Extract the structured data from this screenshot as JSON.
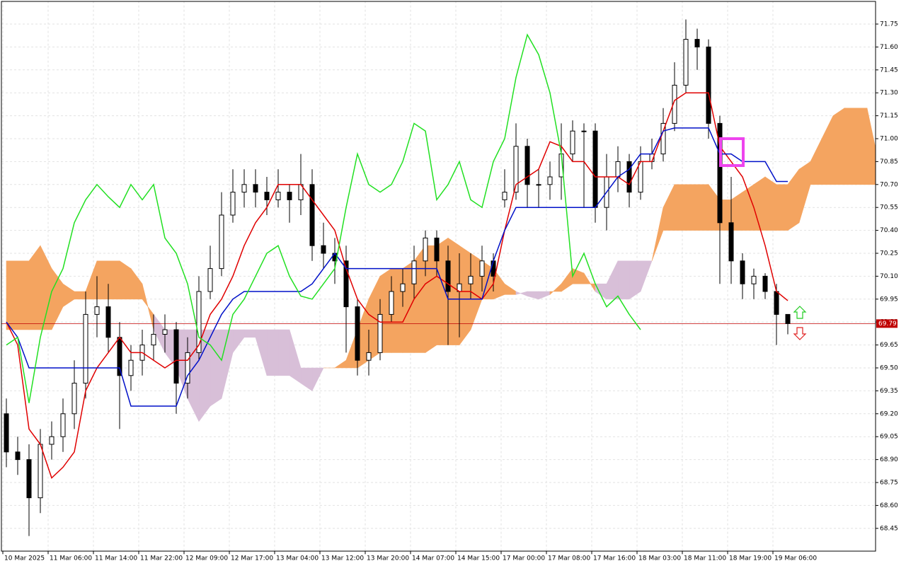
{
  "chart_data": {
    "type": "candlestick",
    "categories": [
      "10 Mar 2025",
      null,
      null,
      null,
      "11 Mar 06:00",
      null,
      null,
      null,
      "11 Mar 14:00",
      null,
      null,
      null,
      "11 Mar 22:00",
      null,
      null,
      null,
      "12 Mar 09:00",
      null,
      null,
      null,
      "12 Mar 17:00",
      null,
      null,
      null,
      "13 Mar 04:00",
      null,
      null,
      null,
      "13 Mar 12:00",
      null,
      null,
      null,
      "13 Mar 20:00",
      null,
      null,
      null,
      "14 Mar 07:00",
      null,
      null,
      null,
      "14 Mar 15:00",
      null,
      null,
      null,
      "17 Mar 00:00",
      null,
      null,
      null,
      "17 Mar 08:00",
      null,
      null,
      null,
      "17 Mar 16:00",
      null,
      null,
      null,
      "18 Mar 03:00",
      null,
      null,
      null,
      "18 Mar 11:00",
      null,
      null,
      null,
      "18 Mar 19:00",
      null,
      null,
      null,
      "19 Mar 06:00",
      null,
      null,
      null,
      null,
      null,
      null,
      null,
      null,
      null
    ],
    "open": [
      69.2,
      68.95,
      68.9,
      68.65,
      69.0,
      69.05,
      69.2,
      69.4,
      69.85,
      69.9,
      69.7,
      69.45,
      69.55,
      69.65,
      69.72,
      69.75,
      69.4,
      69.6,
      70.0,
      70.15,
      70.5,
      70.65,
      70.7,
      70.65,
      70.6,
      70.65,
      70.6,
      70.7,
      70.3,
      70.25,
      70.2,
      69.9,
      69.55,
      69.6,
      69.85,
      70.0,
      70.05,
      70.2,
      70.35,
      70.2,
      70.0,
      70.05,
      70.1,
      70.2,
      70.6,
      70.65,
      70.95,
      70.7,
      70.7,
      70.75,
      70.9,
      71.05,
      71.05,
      70.55,
      70.75,
      70.85,
      70.65,
      70.85,
      70.9,
      71.1,
      71.35,
      71.65,
      71.6,
      71.1,
      70.45,
      70.2,
      70.05,
      70.1,
      70.0,
      69.85,
      null,
      null,
      null,
      null,
      null,
      null,
      null,
      null
    ],
    "high": [
      69.3,
      69.05,
      69.0,
      69.1,
      69.15,
      69.3,
      69.55,
      70.0,
      70.1,
      70.05,
      69.8,
      69.65,
      69.75,
      69.85,
      69.85,
      69.8,
      69.7,
      70.1,
      70.3,
      70.65,
      70.8,
      70.8,
      70.8,
      70.75,
      70.8,
      70.7,
      70.9,
      70.8,
      70.45,
      70.35,
      70.3,
      69.95,
      69.75,
      69.95,
      70.1,
      70.15,
      70.3,
      70.4,
      70.4,
      70.3,
      70.25,
      70.25,
      70.3,
      70.25,
      70.8,
      71.1,
      71.0,
      70.8,
      70.85,
      71.1,
      71.12,
      71.1,
      71.1,
      70.9,
      70.95,
      70.9,
      70.95,
      71.0,
      71.2,
      71.5,
      71.78,
      71.72,
      71.65,
      71.15,
      70.75,
      70.25,
      70.15,
      70.12,
      70.05,
      69.85,
      null,
      null,
      null,
      null,
      null,
      null,
      null,
      null
    ],
    "low": [
      68.85,
      68.8,
      68.4,
      68.55,
      68.9,
      68.95,
      69.1,
      69.3,
      69.7,
      69.6,
      69.1,
      69.35,
      69.45,
      69.55,
      69.6,
      69.2,
      69.3,
      69.55,
      69.95,
      70.1,
      70.45,
      70.55,
      70.55,
      70.5,
      70.55,
      70.45,
      70.5,
      70.2,
      70.15,
      70.05,
      69.6,
      69.45,
      69.45,
      69.55,
      69.8,
      69.9,
      69.95,
      70.1,
      70.1,
      69.65,
      69.7,
      69.95,
      70.0,
      70.0,
      70.55,
      70.6,
      70.55,
      70.55,
      70.6,
      70.6,
      70.85,
      70.55,
      70.45,
      70.4,
      70.65,
      70.55,
      70.6,
      70.8,
      70.85,
      71.05,
      71.3,
      71.45,
      71.0,
      70.05,
      70.05,
      69.95,
      69.95,
      69.95,
      69.65,
      69.72,
      null,
      null,
      null,
      null,
      null,
      null,
      null,
      null
    ],
    "close": [
      68.95,
      68.9,
      68.65,
      69.0,
      69.05,
      69.2,
      69.4,
      69.85,
      69.9,
      69.7,
      69.45,
      69.55,
      69.65,
      69.72,
      69.75,
      69.4,
      69.6,
      70.0,
      70.15,
      70.5,
      70.65,
      70.7,
      70.65,
      70.6,
      70.65,
      70.6,
      70.7,
      70.3,
      70.25,
      70.2,
      69.9,
      69.55,
      69.6,
      69.85,
      70.0,
      70.05,
      70.2,
      70.35,
      70.2,
      70.0,
      70.05,
      70.1,
      70.2,
      70.1,
      70.65,
      70.95,
      70.7,
      70.7,
      70.75,
      70.9,
      71.05,
      71.05,
      70.55,
      70.75,
      70.85,
      70.65,
      70.85,
      70.9,
      71.1,
      71.35,
      71.65,
      71.6,
      71.1,
      70.45,
      70.2,
      70.05,
      70.1,
      70.0,
      69.85,
      69.79,
      null,
      null,
      null,
      null,
      null,
      null,
      null,
      null
    ],
    "up_color": "#ffffff",
    "down_color": "#000000",
    "lines": [
      {
        "color": "#e00000",
        "values": [
          69.8,
          69.65,
          69.1,
          69.0,
          68.78,
          68.85,
          68.95,
          69.35,
          69.5,
          69.6,
          69.7,
          69.6,
          69.6,
          69.55,
          69.5,
          69.55,
          69.55,
          69.65,
          69.85,
          69.95,
          70.1,
          70.3,
          70.45,
          70.55,
          70.7,
          70.7,
          70.7,
          70.6,
          70.5,
          70.4,
          70.15,
          69.95,
          69.85,
          69.8,
          69.8,
          69.8,
          69.95,
          70.05,
          70.1,
          70.05,
          70.0,
          70.0,
          69.95,
          70.05,
          70.4,
          70.7,
          70.75,
          70.8,
          70.98,
          70.95,
          70.85,
          70.85,
          70.75,
          70.75,
          70.75,
          70.7,
          70.85,
          70.85,
          71.05,
          71.25,
          71.3,
          71.3,
          71.3,
          70.95,
          70.85,
          70.75,
          70.55,
          70.3,
          70.0,
          69.94,
          null,
          null,
          null,
          null,
          null,
          null,
          null,
          null
        ]
      },
      {
        "color": "#0010c8",
        "values": [
          69.8,
          69.7,
          69.5,
          69.5,
          69.5,
          69.5,
          69.5,
          69.5,
          69.5,
          69.5,
          69.5,
          69.25,
          69.25,
          69.25,
          69.25,
          69.25,
          69.45,
          69.55,
          69.7,
          69.85,
          69.95,
          70.0,
          70.0,
          70.0,
          70.0,
          70.0,
          70.0,
          70.05,
          70.15,
          70.25,
          70.15,
          70.15,
          70.15,
          70.15,
          70.15,
          70.15,
          70.15,
          70.15,
          70.15,
          69.95,
          69.95,
          69.95,
          69.95,
          70.2,
          70.4,
          70.55,
          70.55,
          70.55,
          70.55,
          70.55,
          70.55,
          70.55,
          70.55,
          70.65,
          70.75,
          70.8,
          70.9,
          70.9,
          71.05,
          71.07,
          71.07,
          71.07,
          71.07,
          70.9,
          70.9,
          70.85,
          70.85,
          70.85,
          70.72,
          70.72,
          null,
          null,
          null,
          null,
          null,
          null,
          null,
          null
        ]
      },
      {
        "color": "#22e022",
        "values": [
          69.65,
          69.7,
          69.27,
          69.7,
          70.0,
          70.15,
          70.45,
          70.6,
          70.7,
          70.62,
          70.55,
          70.7,
          70.6,
          70.7,
          70.35,
          70.25,
          70.05,
          69.7,
          69.65,
          69.55,
          69.85,
          69.95,
          70.1,
          70.25,
          70.3,
          70.1,
          69.97,
          69.95,
          70.05,
          70.15,
          70.55,
          70.9,
          70.7,
          70.65,
          70.7,
          70.85,
          71.1,
          71.05,
          70.6,
          70.7,
          70.85,
          70.6,
          70.55,
          70.85,
          71.0,
          71.4,
          71.68,
          71.55,
          71.3,
          70.9,
          70.1,
          70.25,
          70.05,
          69.9,
          69.97,
          69.85,
          69.75,
          null,
          null,
          null,
          null,
          null,
          null,
          null,
          null,
          null,
          null,
          null,
          null,
          null,
          null,
          null,
          null,
          null,
          null,
          null,
          null,
          null
        ]
      }
    ],
    "cloud": {
      "up_color": "#f4a460",
      "down_color": "#d8bfd8",
      "span_a": [
        70.2,
        70.2,
        70.2,
        70.3,
        70.15,
        70.05,
        70.0,
        70.0,
        70.2,
        70.2,
        70.2,
        70.15,
        70.05,
        69.75,
        69.6,
        69.5,
        69.3,
        69.15,
        69.25,
        69.3,
        69.6,
        69.7,
        69.7,
        69.45,
        69.45,
        69.45,
        69.4,
        69.35,
        69.5,
        69.5,
        69.55,
        69.75,
        69.95,
        70.1,
        70.15,
        70.15,
        70.2,
        70.3,
        70.3,
        70.35,
        70.3,
        70.25,
        70.2,
        70.15,
        70.05,
        70.0,
        69.97,
        69.95,
        69.98,
        70.05,
        70.15,
        70.12,
        70.0,
        69.95,
        69.95,
        69.95,
        70.0,
        70.2,
        70.55,
        70.7,
        70.7,
        70.7,
        70.7,
        70.6,
        70.6,
        70.65,
        70.7,
        70.75,
        70.7,
        70.7,
        70.8,
        70.85,
        71.0,
        71.15,
        71.2,
        71.2,
        71.2,
        70.85
      ],
      "span_b": [
        69.75,
        69.75,
        69.75,
        69.75,
        69.75,
        69.9,
        69.95,
        69.95,
        69.95,
        69.95,
        69.95,
        69.95,
        69.95,
        69.85,
        69.75,
        69.75,
        69.75,
        69.75,
        69.75,
        69.75,
        69.75,
        69.75,
        69.75,
        69.75,
        69.75,
        69.75,
        69.5,
        69.5,
        69.5,
        69.5,
        69.5,
        69.5,
        69.55,
        69.6,
        69.6,
        69.6,
        69.6,
        69.6,
        69.65,
        69.65,
        69.65,
        69.75,
        69.95,
        69.95,
        69.98,
        69.98,
        70.0,
        70.0,
        70.0,
        70.0,
        70.05,
        70.05,
        70.05,
        70.05,
        70.2,
        70.2,
        70.2,
        70.2,
        70.4,
        70.4,
        70.4,
        70.4,
        70.4,
        70.4,
        70.4,
        70.4,
        70.4,
        70.4,
        70.4,
        70.4,
        70.45,
        70.7,
        70.7,
        70.7,
        70.7,
        70.7,
        70.7,
        70.7
      ]
    },
    "current_price": 69.79,
    "price_line_color": "#c00000",
    "ylim": [
      68.3,
      71.9
    ],
    "yticks": [
      68.45,
      {
        "value": 68.6,
        "label": "68.60"
      },
      68.75,
      {
        "value": 68.9,
        "label": "68.90"
      },
      69.05,
      {
        "value": 69.2,
        "label": "69.20"
      },
      69.35,
      {
        "value": 69.5,
        "label": "69.50"
      },
      69.65,
      {
        "value": 69.8,
        "label": "69.80"
      },
      69.95,
      {
        "value": 70.1,
        "label": "70.10"
      },
      70.25,
      {
        "value": 70.4,
        "label": "70.40"
      },
      70.55,
      {
        "value": 70.7,
        "label": "70.70"
      },
      70.85,
      {
        "value": 71.0,
        "label": "71.00"
      },
      71.15,
      {
        "value": 71.3,
        "label": "71.30"
      },
      71.45,
      {
        "value": 71.6,
        "label": "71.60"
      },
      71.75
    ],
    "grid": true
  }
}
